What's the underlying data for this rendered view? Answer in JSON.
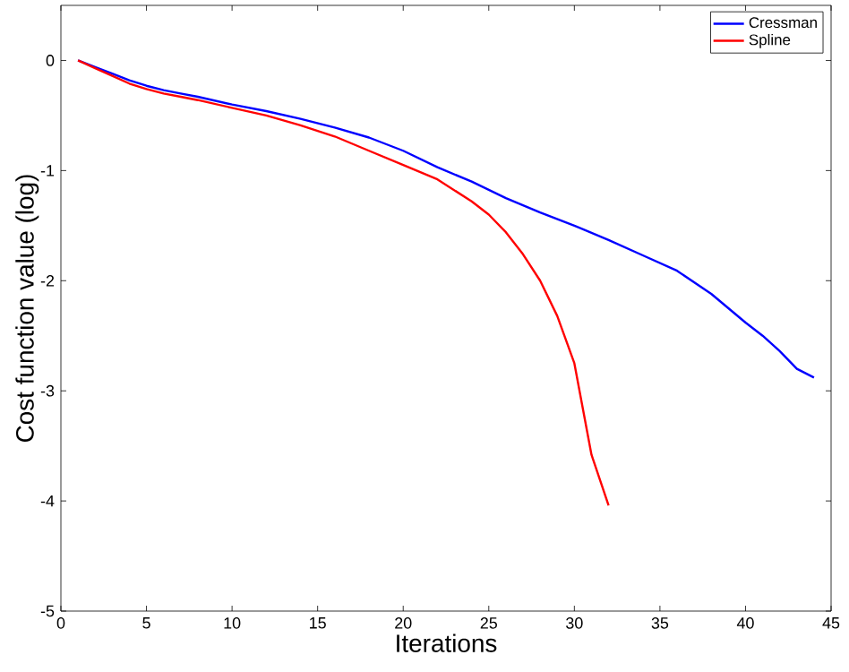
{
  "chart_data": {
    "type": "line",
    "xlabel": "Iterations",
    "ylabel": "Cost function value (log)",
    "xlim": [
      0,
      45
    ],
    "ylim": [
      -5,
      0.5
    ],
    "xticks": [
      0,
      5,
      10,
      15,
      20,
      25,
      30,
      35,
      40,
      45
    ],
    "yticks": [
      -5,
      -4,
      -3,
      -2,
      -1,
      0
    ],
    "legend": "top right",
    "grid": false,
    "marker": "none",
    "line_style": "solid",
    "series": [
      {
        "name": "Cressman",
        "color": "#0000ff",
        "x": [
          1,
          2,
          3,
          4,
          5,
          6,
          7,
          8,
          10,
          12,
          14,
          16,
          18,
          20,
          22,
          24,
          26,
          28,
          30,
          32,
          34,
          36,
          38,
          40,
          41,
          42,
          43,
          44
        ],
        "values": [
          0,
          -0.06,
          -0.12,
          -0.18,
          -0.23,
          -0.27,
          -0.3,
          -0.33,
          -0.4,
          -0.46,
          -0.53,
          -0.61,
          -0.7,
          -0.82,
          -0.97,
          -1.1,
          -1.25,
          -1.38,
          -1.5,
          -1.63,
          -1.77,
          -1.91,
          -2.12,
          -2.38,
          -2.5,
          -2.64,
          -2.8,
          -2.88
        ]
      },
      {
        "name": "Spline",
        "color": "#ff0000",
        "x": [
          1,
          2,
          3,
          4,
          5,
          6,
          7,
          8,
          10,
          12,
          14,
          16,
          18,
          20,
          22,
          24,
          25,
          26,
          27,
          28,
          29,
          30,
          31,
          32
        ],
        "values": [
          0,
          -0.07,
          -0.14,
          -0.21,
          -0.26,
          -0.3,
          -0.33,
          -0.36,
          -0.43,
          -0.5,
          -0.59,
          -0.69,
          -0.82,
          -0.95,
          -1.08,
          -1.28,
          -1.4,
          -1.56,
          -1.76,
          -2.0,
          -2.32,
          -2.75,
          -3.58,
          -4.04
        ]
      }
    ]
  }
}
